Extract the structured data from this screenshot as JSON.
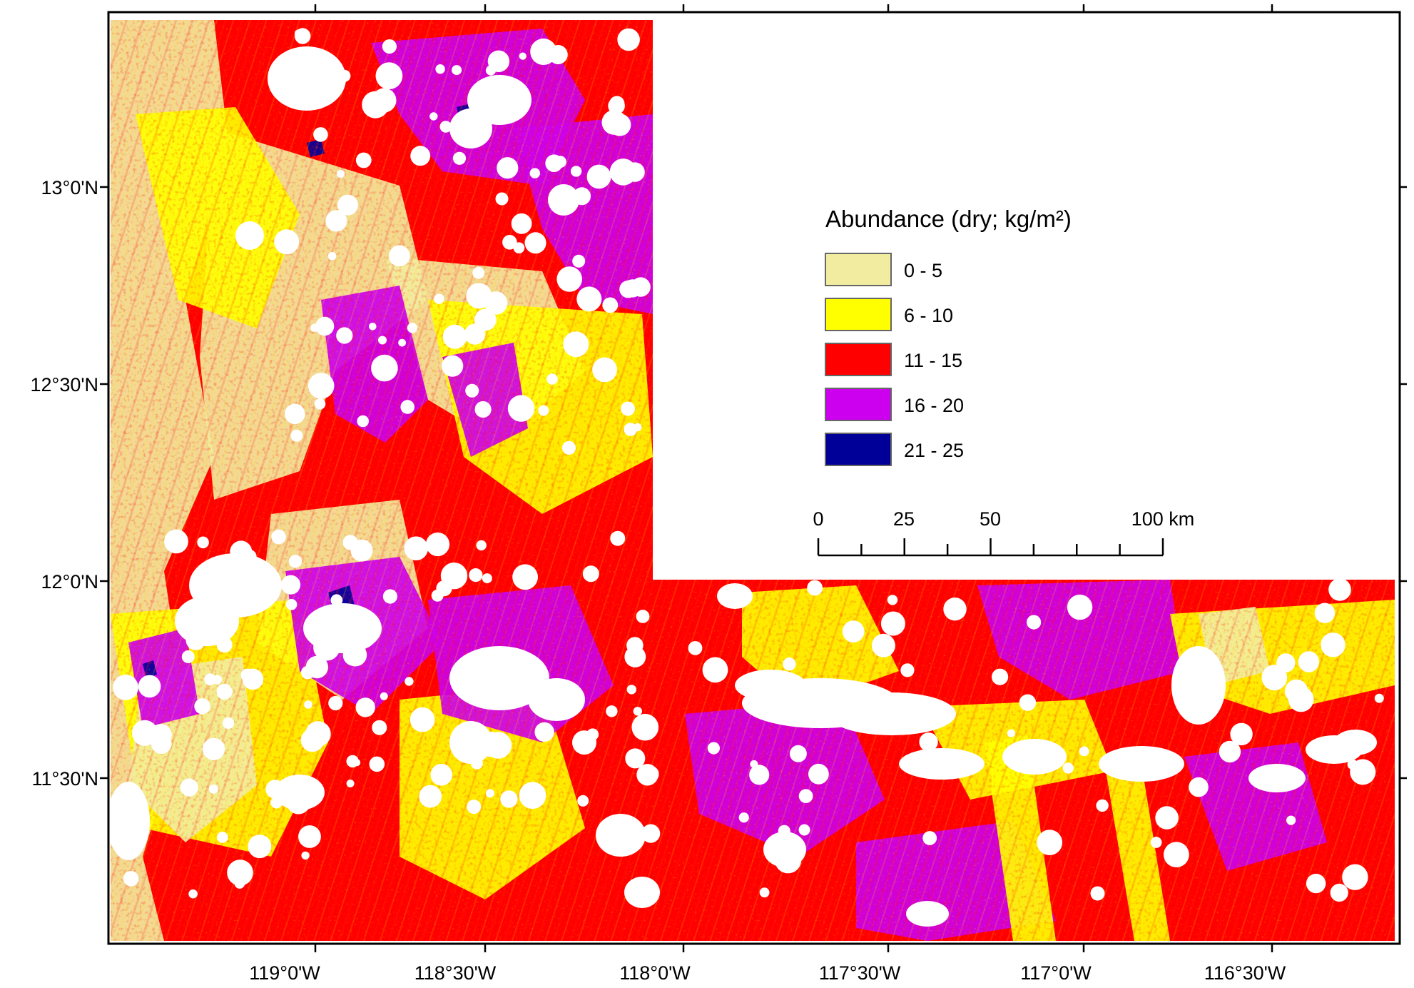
{
  "map": {
    "y_axis_labels": [
      "13°0'N",
      "12°30'N",
      "12°0'N",
      "11°30'N"
    ],
    "x_axis_labels": [
      "119°0'W",
      "118°30'W",
      "118°0'W",
      "117°30'W",
      "117°0'W",
      "116°30'W"
    ]
  },
  "legend": {
    "title": "Abundance  (dry; kg/m²)",
    "classes": [
      {
        "label": "0 - 5",
        "color": "#f2eca0"
      },
      {
        "label": "6 - 10",
        "color": "#ffff00"
      },
      {
        "label": "11 - 15",
        "color": "#ff0000"
      },
      {
        "label": "16 - 20",
        "color": "#cc00ee"
      },
      {
        "label": "21 - 25",
        "color": "#000099"
      }
    ]
  },
  "scale_bar": {
    "labels": [
      "0",
      "25",
      "50",
      "100 km"
    ]
  },
  "colors": {
    "no_data": "#ffffff",
    "frame": "#000000"
  }
}
